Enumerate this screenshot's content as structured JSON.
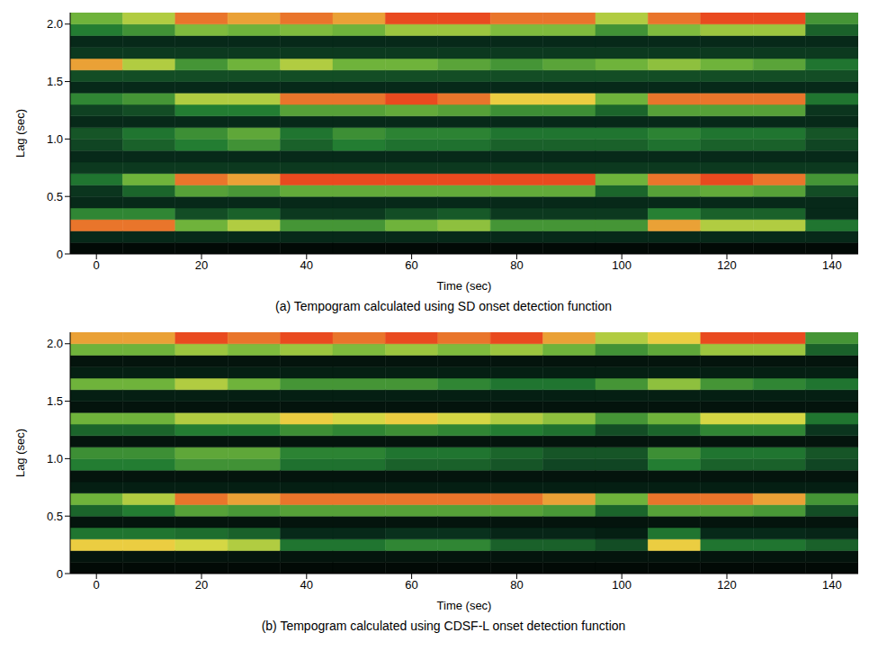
{
  "chart_data": [
    {
      "type": "heatmap",
      "title": "(a) Tempogram calculated using SD onset detection function",
      "x_label": "Time (sec)",
      "y_label": "Lag (sec)",
      "xlim": [
        -5,
        145
      ],
      "xticks": [
        0,
        20,
        40,
        60,
        80,
        100,
        120,
        140
      ],
      "ylim": [
        0,
        2.1
      ],
      "yticks": [
        0,
        0.5,
        {
          "value": 1,
          "label": "1.0"
        },
        1.5,
        {
          "value": 2,
          "label": "2.0"
        }
      ],
      "x_edges": [
        -5,
        5,
        15,
        25,
        35,
        45,
        55,
        65,
        75,
        85,
        95,
        105,
        115,
        125,
        135,
        145
      ],
      "y_edges": [
        0,
        0.1,
        0.2,
        0.3,
        0.4,
        0.5,
        0.6,
        0.7,
        0.8,
        0.9,
        1.0,
        1.1,
        1.2,
        1.3,
        1.4,
        1.5,
        1.6,
        1.7,
        1.8,
        1.9,
        2.0,
        2.1
      ],
      "color_range": [
        0,
        1
      ],
      "cells": [
        [
          0.05,
          0.2,
          0.9,
          0.45,
          0.2,
          0.24,
          0.4,
          0.25,
          0.2,
          0.28,
          0.32,
          0.2,
          0.27,
          0.45,
          0.2,
          0.3,
          0.85,
          0.25,
          0.2,
          0.42,
          0.6
        ],
        [
          0.05,
          0.2,
          0.9,
          0.45,
          0.2,
          0.36,
          0.6,
          0.25,
          0.2,
          0.35,
          0.4,
          0.2,
          0.3,
          0.5,
          0.2,
          0.3,
          0.7,
          0.25,
          0.2,
          0.49,
          0.7
        ],
        [
          0.05,
          0.2,
          0.6,
          0.3,
          0.2,
          0.54,
          0.9,
          0.25,
          0.2,
          0.42,
          0.48,
          0.2,
          0.42,
          0.7,
          0.2,
          0.3,
          0.5,
          0.25,
          0.2,
          0.63,
          0.9
        ],
        [
          0.05,
          0.2,
          0.7,
          0.35,
          0.2,
          0.51,
          0.85,
          0.25,
          0.2,
          0.49,
          0.56,
          0.2,
          0.42,
          0.7,
          0.2,
          0.3,
          0.6,
          0.25,
          0.2,
          0.6,
          0.85
        ],
        [
          0.05,
          0.2,
          0.5,
          0.25,
          0.2,
          0.57,
          0.95,
          0.25,
          0.2,
          0.35,
          0.4,
          0.2,
          0.54,
          0.9,
          0.2,
          0.3,
          0.7,
          0.25,
          0.2,
          0.63,
          0.9
        ],
        [
          0.05,
          0.2,
          0.5,
          0.25,
          0.2,
          0.57,
          0.95,
          0.25,
          0.2,
          0.42,
          0.48,
          0.2,
          0.54,
          0.9,
          0.2,
          0.3,
          0.6,
          0.25,
          0.2,
          0.6,
          0.85
        ],
        [
          0.05,
          0.2,
          0.6,
          0.3,
          0.2,
          0.57,
          0.95,
          0.25,
          0.2,
          0.39,
          0.44,
          0.2,
          0.57,
          0.95,
          0.2,
          0.3,
          0.6,
          0.25,
          0.2,
          0.67,
          0.95
        ],
        [
          0.05,
          0.2,
          0.65,
          0.33,
          0.2,
          0.57,
          0.95,
          0.25,
          0.2,
          0.39,
          0.44,
          0.2,
          0.54,
          0.9,
          0.2,
          0.3,
          0.55,
          0.25,
          0.2,
          0.67,
          0.95
        ],
        [
          0.05,
          0.2,
          0.5,
          0.25,
          0.2,
          0.57,
          0.95,
          0.25,
          0.2,
          0.35,
          0.4,
          0.2,
          0.48,
          0.8,
          0.2,
          0.3,
          0.5,
          0.25,
          0.2,
          0.63,
          0.9
        ],
        [
          0.05,
          0.2,
          0.5,
          0.25,
          0.2,
          0.57,
          0.95,
          0.25,
          0.2,
          0.35,
          0.4,
          0.2,
          0.48,
          0.8,
          0.2,
          0.3,
          0.55,
          0.25,
          0.2,
          0.63,
          0.9
        ],
        [
          0.05,
          0.2,
          0.5,
          0.25,
          0.2,
          0.36,
          0.6,
          0.25,
          0.2,
          0.35,
          0.4,
          0.2,
          0.36,
          0.6,
          0.2,
          0.3,
          0.6,
          0.25,
          0.2,
          0.49,
          0.7
        ],
        [
          0.05,
          0.2,
          0.85,
          0.43,
          0.2,
          0.54,
          0.9,
          0.25,
          0.2,
          0.39,
          0.44,
          0.2,
          0.54,
          0.9,
          0.2,
          0.3,
          0.65,
          0.25,
          0.2,
          0.63,
          0.9
        ],
        [
          0.05,
          0.2,
          0.7,
          0.35,
          0.2,
          0.57,
          0.95,
          0.25,
          0.2,
          0.35,
          0.4,
          0.2,
          0.54,
          0.9,
          0.2,
          0.3,
          0.6,
          0.25,
          0.2,
          0.67,
          0.95
        ],
        [
          0.05,
          0.2,
          0.7,
          0.35,
          0.2,
          0.54,
          0.9,
          0.25,
          0.2,
          0.35,
          0.4,
          0.2,
          0.54,
          0.9,
          0.2,
          0.3,
          0.55,
          0.25,
          0.2,
          0.67,
          0.95
        ],
        [
          0.05,
          0.2,
          0.4,
          0.2,
          0.2,
          0.3,
          0.5,
          0.25,
          0.2,
          0.28,
          0.32,
          0.2,
          0.24,
          0.4,
          0.2,
          0.3,
          0.4,
          0.25,
          0.2,
          0.35,
          0.5
        ]
      ]
    },
    {
      "type": "heatmap",
      "title": "(b) Tempogram calculated using CDSF-L onset detection function",
      "x_label": "Time (sec)",
      "y_label": "Lag (sec)",
      "xlim": [
        -5,
        145
      ],
      "xticks": [
        0,
        20,
        40,
        60,
        80,
        100,
        120,
        140
      ],
      "ylim": [
        0,
        2.1
      ],
      "yticks": [
        0,
        0.5,
        {
          "value": 1,
          "label": "1.0"
        },
        1.5,
        {
          "value": 2,
          "label": "2.0"
        }
      ],
      "x_edges": [
        -5,
        5,
        15,
        25,
        35,
        45,
        55,
        65,
        75,
        85,
        95,
        105,
        115,
        125,
        135,
        145
      ],
      "y_edges": [
        0,
        0.1,
        0.2,
        0.3,
        0.4,
        0.5,
        0.6,
        0.7,
        0.8,
        0.9,
        1.0,
        1.1,
        1.2,
        1.3,
        1.4,
        1.5,
        1.6,
        1.7,
        1.8,
        1.9,
        2.0,
        2.1
      ],
      "color_range": [
        0,
        1
      ],
      "cells": [
        [
          0.05,
          0.1,
          0.8,
          0.4,
          0.1,
          0.36,
          0.6,
          0.15,
          0.1,
          0.42,
          0.48,
          0.1,
          0.36,
          0.6,
          0.1,
          0.15,
          0.6,
          0.15,
          0.1,
          0.6,
          0.85
        ],
        [
          0.05,
          0.1,
          0.8,
          0.4,
          0.1,
          0.42,
          0.7,
          0.15,
          0.1,
          0.42,
          0.48,
          0.1,
          0.36,
          0.6,
          0.1,
          0.15,
          0.6,
          0.15,
          0.1,
          0.6,
          0.85
        ],
        [
          0.05,
          0.1,
          0.75,
          0.38,
          0.1,
          0.54,
          0.9,
          0.15,
          0.1,
          0.49,
          0.56,
          0.1,
          0.42,
          0.7,
          0.1,
          0.15,
          0.7,
          0.15,
          0.1,
          0.67,
          0.95
        ],
        [
          0.05,
          0.1,
          0.7,
          0.35,
          0.1,
          0.51,
          0.85,
          0.15,
          0.1,
          0.49,
          0.56,
          0.1,
          0.42,
          0.7,
          0.1,
          0.15,
          0.6,
          0.15,
          0.1,
          0.63,
          0.9
        ],
        [
          0.05,
          0.1,
          0.4,
          0.2,
          0.1,
          0.54,
          0.9,
          0.15,
          0.1,
          0.39,
          0.44,
          0.1,
          0.48,
          0.8,
          0.1,
          0.15,
          0.5,
          0.15,
          0.1,
          0.67,
          0.95
        ],
        [
          0.05,
          0.1,
          0.4,
          0.2,
          0.1,
          0.54,
          0.9,
          0.15,
          0.1,
          0.39,
          0.44,
          0.1,
          0.45,
          0.75,
          0.1,
          0.15,
          0.5,
          0.15,
          0.1,
          0.63,
          0.9
        ],
        [
          0.05,
          0.1,
          0.45,
          0.23,
          0.1,
          0.54,
          0.9,
          0.15,
          0.1,
          0.35,
          0.4,
          0.1,
          0.48,
          0.8,
          0.1,
          0.15,
          0.5,
          0.15,
          0.1,
          0.67,
          0.95
        ],
        [
          0.05,
          0.1,
          0.45,
          0.23,
          0.1,
          0.54,
          0.9,
          0.15,
          0.1,
          0.35,
          0.4,
          0.1,
          0.45,
          0.75,
          0.1,
          0.15,
          0.45,
          0.15,
          0.1,
          0.63,
          0.9
        ],
        [
          0.05,
          0.1,
          0.35,
          0.18,
          0.1,
          0.54,
          0.9,
          0.15,
          0.1,
          0.32,
          0.36,
          0.1,
          0.42,
          0.7,
          0.1,
          0.15,
          0.4,
          0.15,
          0.1,
          0.67,
          0.95
        ],
        [
          0.05,
          0.1,
          0.35,
          0.18,
          0.1,
          0.51,
          0.85,
          0.15,
          0.1,
          0.28,
          0.32,
          0.1,
          0.39,
          0.65,
          0.1,
          0.15,
          0.4,
          0.15,
          0.1,
          0.6,
          0.85
        ],
        [
          0.05,
          0.1,
          0.3,
          0.15,
          0.1,
          0.36,
          0.6,
          0.15,
          0.1,
          0.28,
          0.32,
          0.1,
          0.3,
          0.5,
          0.1,
          0.15,
          0.5,
          0.15,
          0.1,
          0.49,
          0.7
        ],
        [
          0.05,
          0.1,
          0.8,
          0.4,
          0.1,
          0.54,
          0.9,
          0.15,
          0.1,
          0.42,
          0.48,
          0.1,
          0.36,
          0.6,
          0.1,
          0.15,
          0.65,
          0.15,
          0.1,
          0.56,
          0.8
        ],
        [
          0.05,
          0.1,
          0.4,
          0.2,
          0.1,
          0.54,
          0.9,
          0.15,
          0.1,
          0.35,
          0.4,
          0.1,
          0.45,
          0.75,
          0.1,
          0.15,
          0.5,
          0.15,
          0.1,
          0.67,
          0.95
        ],
        [
          0.05,
          0.1,
          0.4,
          0.2,
          0.1,
          0.51,
          0.85,
          0.15,
          0.1,
          0.35,
          0.4,
          0.1,
          0.45,
          0.75,
          0.1,
          0.15,
          0.45,
          0.15,
          0.1,
          0.67,
          0.95
        ],
        [
          0.05,
          0.1,
          0.35,
          0.18,
          0.1,
          0.3,
          0.5,
          0.15,
          0.1,
          0.28,
          0.32,
          0.1,
          0.24,
          0.4,
          0.1,
          0.15,
          0.4,
          0.15,
          0.1,
          0.35,
          0.5
        ]
      ]
    }
  ]
}
